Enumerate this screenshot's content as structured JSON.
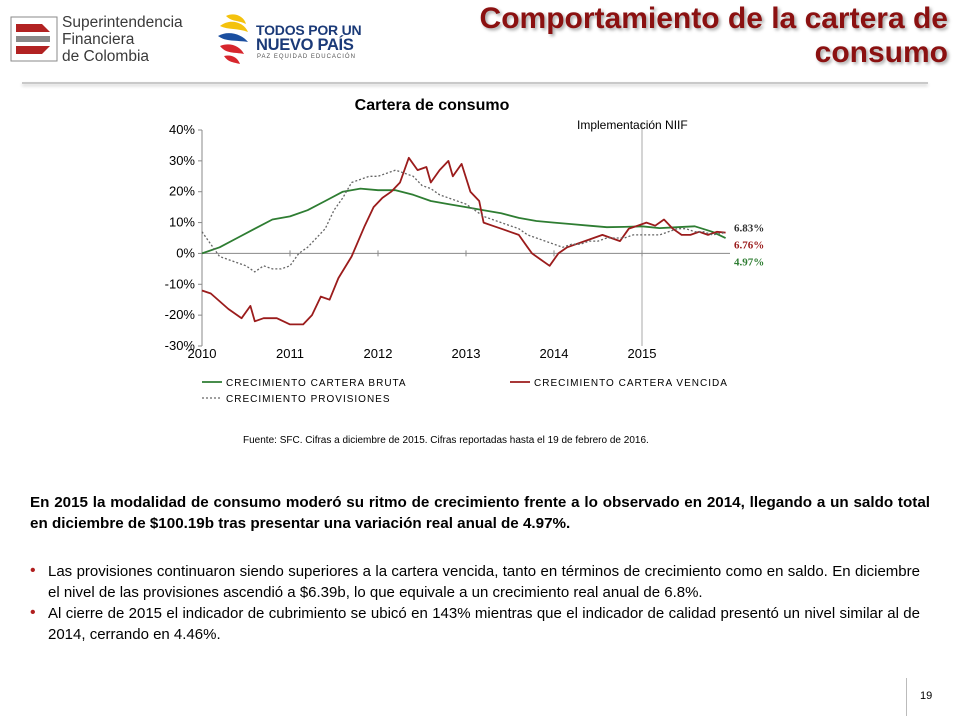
{
  "header": {
    "sfc_logo_lines": [
      "Superintendencia",
      "Financiera",
      "de Colombia"
    ],
    "gov_logo_line1": "TODOS POR UN",
    "gov_logo_line2": "NUEVO PAÍS",
    "gov_logo_line3": "PAZ  EQUIDAD  EDUCACIÓN",
    "title": "Comportamiento de la cartera de consumo"
  },
  "colors": {
    "title": "#8b1111",
    "bruta": "#2e7d32",
    "vencida": "#9b1c1c",
    "provisiones": "#666666",
    "bullet": "#b01e1e"
  },
  "chart_data": {
    "type": "line",
    "title": "Cartera de consumo",
    "annotation": "Implementación NIIF",
    "annotation_x": 2015.0,
    "x_ticks": [
      "2010",
      "2011",
      "2012",
      "2013",
      "2014",
      "2015"
    ],
    "xlim": [
      2010,
      2016
    ],
    "ylim": [
      -30,
      40
    ],
    "y_ticks": [
      "-30%",
      "-20%",
      "-10%",
      "0%",
      "10%",
      "20%",
      "30%",
      "40%"
    ],
    "series": [
      {
        "name": "CRECIMIENTO CARTERA BRUTA",
        "color": "#2e7d32",
        "dash": "solid",
        "end_label": "4.97%",
        "x": [
          2010.0,
          2010.2,
          2010.4,
          2010.6,
          2010.8,
          2011.0,
          2011.2,
          2011.4,
          2011.6,
          2011.8,
          2012.0,
          2012.2,
          2012.4,
          2012.6,
          2012.8,
          2013.0,
          2013.2,
          2013.4,
          2013.6,
          2013.8,
          2014.0,
          2014.2,
          2014.4,
          2014.6,
          2014.8,
          2015.0,
          2015.2,
          2015.4,
          2015.6,
          2015.8,
          2015.95
        ],
        "y": [
          0,
          2,
          5,
          8,
          11,
          12,
          14,
          17,
          20,
          21,
          20.5,
          20.5,
          19,
          17,
          16,
          15,
          14,
          13,
          11.5,
          10.5,
          10,
          9.5,
          9,
          8.5,
          8.6,
          8.8,
          8.2,
          8.5,
          8.8,
          7,
          4.97
        ]
      },
      {
        "name": "CRECIMIENTO CARTERA VENCIDA",
        "color": "#9b1c1c",
        "dash": "solid",
        "end_label": "6.76%",
        "x": [
          2010.0,
          2010.1,
          2010.3,
          2010.45,
          2010.55,
          2010.6,
          2010.7,
          2010.85,
          2011.0,
          2011.15,
          2011.25,
          2011.35,
          2011.45,
          2011.55,
          2011.7,
          2011.85,
          2011.95,
          2012.05,
          2012.15,
          2012.25,
          2012.35,
          2012.45,
          2012.55,
          2012.6,
          2012.7,
          2012.8,
          2012.85,
          2012.95,
          2013.05,
          2013.15,
          2013.2,
          2013.3,
          2013.4,
          2013.5,
          2013.6,
          2013.7,
          2013.75,
          2013.85,
          2013.95,
          2014.05,
          2014.15,
          2014.25,
          2014.35,
          2014.45,
          2014.55,
          2014.65,
          2014.75,
          2014.85,
          2014.95,
          2015.05,
          2015.15,
          2015.25,
          2015.35,
          2015.45,
          2015.55,
          2015.65,
          2015.75,
          2015.85,
          2015.95
        ],
        "y": [
          -12,
          -13,
          -18,
          -21,
          -17,
          -22,
          -21,
          -21,
          -23,
          -23,
          -20,
          -14,
          -15,
          -8,
          -1,
          9,
          15,
          18,
          20,
          23,
          31,
          27,
          28,
          23,
          27,
          30,
          25,
          29,
          20,
          17,
          10,
          9,
          8,
          7,
          6,
          2,
          0,
          -2,
          -4,
          0,
          2,
          3,
          4,
          5,
          6,
          5,
          4,
          8,
          9,
          10,
          9,
          11,
          8,
          6,
          6,
          7,
          6,
          7,
          6.76
        ]
      },
      {
        "name": "CRECIMIENTO PROVISIONES",
        "color": "#666666",
        "dash": "dotted",
        "end_label": "6.83%",
        "x": [
          2010.0,
          2010.1,
          2010.2,
          2010.3,
          2010.4,
          2010.5,
          2010.6,
          2010.7,
          2010.8,
          2010.9,
          2011.0,
          2011.1,
          2011.2,
          2011.3,
          2011.4,
          2011.5,
          2011.6,
          2011.7,
          2011.8,
          2011.9,
          2012.0,
          2012.1,
          2012.2,
          2012.3,
          2012.4,
          2012.5,
          2012.6,
          2012.7,
          2012.8,
          2012.9,
          2013.0,
          2013.1,
          2013.2,
          2013.3,
          2013.4,
          2013.5,
          2013.6,
          2013.7,
          2013.8,
          2013.9,
          2014.0,
          2014.1,
          2014.2,
          2014.3,
          2014.4,
          2014.5,
          2014.6,
          2014.7,
          2014.8,
          2014.9,
          2015.0,
          2015.1,
          2015.2,
          2015.3,
          2015.4,
          2015.5,
          2015.6,
          2015.7,
          2015.8,
          2015.9,
          2015.95
        ],
        "y": [
          7,
          3,
          -1,
          -2,
          -3,
          -4,
          -6,
          -4,
          -5,
          -5,
          -4,
          0,
          2,
          5,
          8,
          14,
          18,
          23,
          24,
          25,
          25,
          26,
          27,
          26,
          25,
          22,
          21,
          19,
          18,
          17,
          16,
          14,
          12,
          11,
          10,
          9,
          8,
          6,
          5,
          4,
          3,
          2,
          3,
          3,
          4,
          4,
          5,
          5,
          5,
          6,
          6,
          6,
          6,
          7,
          8,
          8,
          7,
          7,
          6,
          6.5,
          6.83
        ]
      }
    ],
    "legend_position": "bottom"
  },
  "source_text": "Fuente: SFC. Cifras a diciembre de 2015. Cifras reportadas hasta el 19 de febrero de 2016.",
  "paragraph": "En 2015 la modalidad de consumo moderó su ritmo de crecimiento frente a lo observado en 2014, llegando a un saldo total en diciembre de $100.19b tras presentar una variación real anual de 4.97%.",
  "bullets": [
    {
      "text": "Las provisiones continuaron siendo superiores a la cartera vencida, tanto en términos de crecimiento como en saldo. En diciembre el nivel de las provisiones ascendió a $6.39b, lo que equivale a un crecimiento real anual de 6.8%."
    },
    {
      "text": "Al cierre de 2015 el indicador de cubrimiento se ubicó en 143% mientras que el indicador de calidad presentó un nivel similar al de 2014, cerrando en 4.46%."
    }
  ],
  "bullet_symbol": "•",
  "page_number": "19"
}
